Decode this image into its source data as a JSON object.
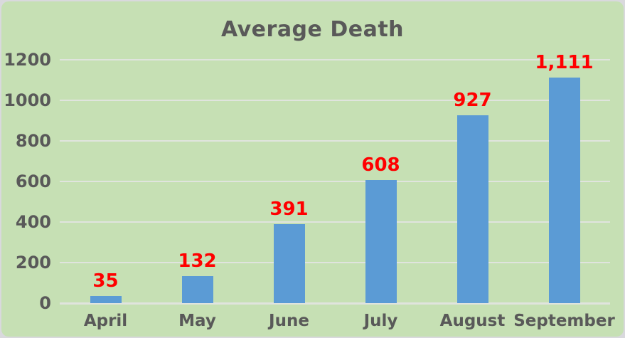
{
  "page": {
    "background": "#d9d9dd"
  },
  "card": {
    "background": "#c6e0b4"
  },
  "chart_data": {
    "type": "bar",
    "title": "Average Death",
    "categories": [
      "April",
      "May",
      "June",
      "July",
      "August",
      "September"
    ],
    "values": [
      35,
      132,
      391,
      608,
      927,
      1111
    ],
    "value_labels": [
      "35",
      "132",
      "391",
      "608",
      "927",
      "1,111"
    ],
    "xlabel": "",
    "ylabel": "",
    "ylim": [
      0,
      1200
    ],
    "yticks": [
      0,
      200,
      400,
      600,
      800,
      1000,
      1200
    ],
    "ytick_labels": [
      "0",
      "200",
      "400",
      "600",
      "800",
      "1000",
      "1200"
    ],
    "grid": true,
    "legend": false,
    "colors": {
      "bar": "#5b9bd5",
      "value_label": "#ff0000",
      "axis_text": "#595959",
      "gridline": "#e0e4de",
      "plot_background": "#c6e0b4"
    }
  }
}
